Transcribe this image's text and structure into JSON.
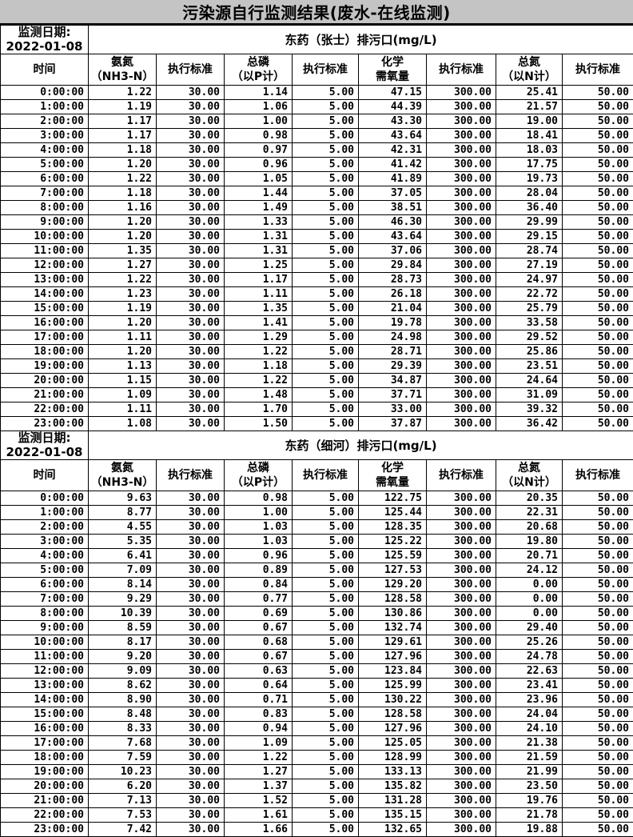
{
  "title": "污染源自行监测结果(废水-在线监测)",
  "unit_note": "mg/L",
  "columns": [
    {
      "lines": [
        "时间"
      ]
    },
    {
      "lines": [
        "氨氮",
        "（NH3-N）"
      ]
    },
    {
      "lines": [
        "执行标准"
      ]
    },
    {
      "lines": [
        "总磷",
        "（以P计）"
      ]
    },
    {
      "lines": [
        "执行标准"
      ]
    },
    {
      "lines": [
        "化学",
        "需氧量"
      ]
    },
    {
      "lines": [
        "执行标准"
      ]
    },
    {
      "lines": [
        "总氮",
        "（以N计）"
      ]
    },
    {
      "lines": [
        "执行标准"
      ]
    }
  ],
  "sections": [
    {
      "date_label": "监测日期:",
      "date": "2022-01-08",
      "outlet": "东药（张士）排污口(mg/L)",
      "rows": [
        [
          "0:00:00",
          "1.22",
          "30.00",
          "1.14",
          "5.00",
          "47.15",
          "300.00",
          "25.41",
          "50.00"
        ],
        [
          "1:00:00",
          "1.19",
          "30.00",
          "1.06",
          "5.00",
          "44.39",
          "300.00",
          "21.57",
          "50.00"
        ],
        [
          "2:00:00",
          "1.17",
          "30.00",
          "1.00",
          "5.00",
          "43.30",
          "300.00",
          "19.00",
          "50.00"
        ],
        [
          "3:00:00",
          "1.17",
          "30.00",
          "0.98",
          "5.00",
          "43.64",
          "300.00",
          "18.41",
          "50.00"
        ],
        [
          "4:00:00",
          "1.18",
          "30.00",
          "0.97",
          "5.00",
          "42.31",
          "300.00",
          "18.03",
          "50.00"
        ],
        [
          "5:00:00",
          "1.20",
          "30.00",
          "0.96",
          "5.00",
          "41.42",
          "300.00",
          "17.75",
          "50.00"
        ],
        [
          "6:00:00",
          "1.22",
          "30.00",
          "1.05",
          "5.00",
          "41.89",
          "300.00",
          "19.73",
          "50.00"
        ],
        [
          "7:00:00",
          "1.18",
          "30.00",
          "1.44",
          "5.00",
          "37.05",
          "300.00",
          "28.04",
          "50.00"
        ],
        [
          "8:00:00",
          "1.16",
          "30.00",
          "1.49",
          "5.00",
          "38.51",
          "300.00",
          "36.40",
          "50.00"
        ],
        [
          "9:00:00",
          "1.20",
          "30.00",
          "1.33",
          "5.00",
          "46.30",
          "300.00",
          "29.99",
          "50.00"
        ],
        [
          "10:00:00",
          "1.20",
          "30.00",
          "1.31",
          "5.00",
          "43.64",
          "300.00",
          "29.15",
          "50.00"
        ],
        [
          "11:00:00",
          "1.35",
          "30.00",
          "1.31",
          "5.00",
          "37.06",
          "300.00",
          "28.74",
          "50.00"
        ],
        [
          "12:00:00",
          "1.27",
          "30.00",
          "1.25",
          "5.00",
          "29.84",
          "300.00",
          "27.19",
          "50.00"
        ],
        [
          "13:00:00",
          "1.22",
          "30.00",
          "1.17",
          "5.00",
          "28.73",
          "300.00",
          "24.97",
          "50.00"
        ],
        [
          "14:00:00",
          "1.23",
          "30.00",
          "1.11",
          "5.00",
          "26.18",
          "300.00",
          "22.72",
          "50.00"
        ],
        [
          "15:00:00",
          "1.19",
          "30.00",
          "1.35",
          "5.00",
          "21.04",
          "300.00",
          "25.79",
          "50.00"
        ],
        [
          "16:00:00",
          "1.20",
          "30.00",
          "1.41",
          "5.00",
          "19.78",
          "300.00",
          "33.58",
          "50.00"
        ],
        [
          "17:00:00",
          "1.11",
          "30.00",
          "1.29",
          "5.00",
          "24.98",
          "300.00",
          "29.52",
          "50.00"
        ],
        [
          "18:00:00",
          "1.20",
          "30.00",
          "1.22",
          "5.00",
          "28.71",
          "300.00",
          "25.86",
          "50.00"
        ],
        [
          "19:00:00",
          "1.13",
          "30.00",
          "1.18",
          "5.00",
          "29.39",
          "300.00",
          "23.51",
          "50.00"
        ],
        [
          "20:00:00",
          "1.15",
          "30.00",
          "1.22",
          "5.00",
          "34.87",
          "300.00",
          "24.64",
          "50.00"
        ],
        [
          "21:00:00",
          "1.09",
          "30.00",
          "1.48",
          "5.00",
          "37.71",
          "300.00",
          "31.09",
          "50.00"
        ],
        [
          "22:00:00",
          "1.11",
          "30.00",
          "1.70",
          "5.00",
          "33.00",
          "300.00",
          "39.32",
          "50.00"
        ],
        [
          "23:00:00",
          "1.08",
          "30.00",
          "1.50",
          "5.00",
          "37.87",
          "300.00",
          "36.42",
          "50.00"
        ]
      ]
    },
    {
      "date_label": "监测日期:",
      "date": "2022-01-08",
      "outlet": "东药（细河）排污口(mg/L)",
      "rows": [
        [
          "0:00:00",
          "9.63",
          "30.00",
          "0.98",
          "5.00",
          "122.75",
          "300.00",
          "20.35",
          "50.00"
        ],
        [
          "1:00:00",
          "8.77",
          "30.00",
          "1.00",
          "5.00",
          "125.44",
          "300.00",
          "22.31",
          "50.00"
        ],
        [
          "2:00:00",
          "4.55",
          "30.00",
          "1.03",
          "5.00",
          "128.35",
          "300.00",
          "20.68",
          "50.00"
        ],
        [
          "3:00:00",
          "5.35",
          "30.00",
          "1.03",
          "5.00",
          "125.22",
          "300.00",
          "19.80",
          "50.00"
        ],
        [
          "4:00:00",
          "6.41",
          "30.00",
          "0.96",
          "5.00",
          "125.59",
          "300.00",
          "20.71",
          "50.00"
        ],
        [
          "5:00:00",
          "7.09",
          "30.00",
          "0.89",
          "5.00",
          "127.53",
          "300.00",
          "24.12",
          "50.00"
        ],
        [
          "6:00:00",
          "8.14",
          "30.00",
          "0.84",
          "5.00",
          "129.20",
          "300.00",
          "0.00",
          "50.00"
        ],
        [
          "7:00:00",
          "9.29",
          "30.00",
          "0.77",
          "5.00",
          "128.58",
          "300.00",
          "0.00",
          "50.00"
        ],
        [
          "8:00:00",
          "10.39",
          "30.00",
          "0.69",
          "5.00",
          "130.86",
          "300.00",
          "0.00",
          "50.00"
        ],
        [
          "9:00:00",
          "8.59",
          "30.00",
          "0.67",
          "5.00",
          "132.74",
          "300.00",
          "29.40",
          "50.00"
        ],
        [
          "10:00:00",
          "8.17",
          "30.00",
          "0.68",
          "5.00",
          "129.61",
          "300.00",
          "25.26",
          "50.00"
        ],
        [
          "11:00:00",
          "9.20",
          "30.00",
          "0.67",
          "5.00",
          "127.96",
          "300.00",
          "24.78",
          "50.00"
        ],
        [
          "12:00:00",
          "9.09",
          "30.00",
          "0.63",
          "5.00",
          "123.84",
          "300.00",
          "22.63",
          "50.00"
        ],
        [
          "13:00:00",
          "8.62",
          "30.00",
          "0.64",
          "5.00",
          "125.99",
          "300.00",
          "23.41",
          "50.00"
        ],
        [
          "14:00:00",
          "8.90",
          "30.00",
          "0.71",
          "5.00",
          "130.22",
          "300.00",
          "23.96",
          "50.00"
        ],
        [
          "15:00:00",
          "8.48",
          "30.00",
          "0.83",
          "5.00",
          "128.58",
          "300.00",
          "24.04",
          "50.00"
        ],
        [
          "16:00:00",
          "8.33",
          "30.00",
          "0.94",
          "5.00",
          "127.96",
          "300.00",
          "24.10",
          "50.00"
        ],
        [
          "17:00:00",
          "7.68",
          "30.00",
          "1.09",
          "5.00",
          "125.05",
          "300.00",
          "21.38",
          "50.00"
        ],
        [
          "18:00:00",
          "7.59",
          "30.00",
          "1.22",
          "5.00",
          "128.99",
          "300.00",
          "21.59",
          "50.00"
        ],
        [
          "19:00:00",
          "10.23",
          "30.00",
          "1.27",
          "5.00",
          "133.13",
          "300.00",
          "21.99",
          "50.00"
        ],
        [
          "20:00:00",
          "6.20",
          "30.00",
          "1.37",
          "5.00",
          "135.82",
          "300.00",
          "23.50",
          "50.00"
        ],
        [
          "21:00:00",
          "7.13",
          "30.00",
          "1.52",
          "5.00",
          "131.28",
          "300.00",
          "19.76",
          "50.00"
        ],
        [
          "22:00:00",
          "7.53",
          "30.00",
          "1.61",
          "5.00",
          "135.15",
          "300.00",
          "21.78",
          "50.00"
        ],
        [
          "23:00:00",
          "7.42",
          "30.00",
          "1.66",
          "5.00",
          "132.65",
          "300.00",
          "19.88",
          "50.00"
        ]
      ]
    }
  ],
  "colors": {
    "title_bg": "#c4c4c4",
    "page_bg": "#c6c6c6",
    "cell_bg": "#ffffff",
    "border": "#000000",
    "text": "#000000"
  }
}
